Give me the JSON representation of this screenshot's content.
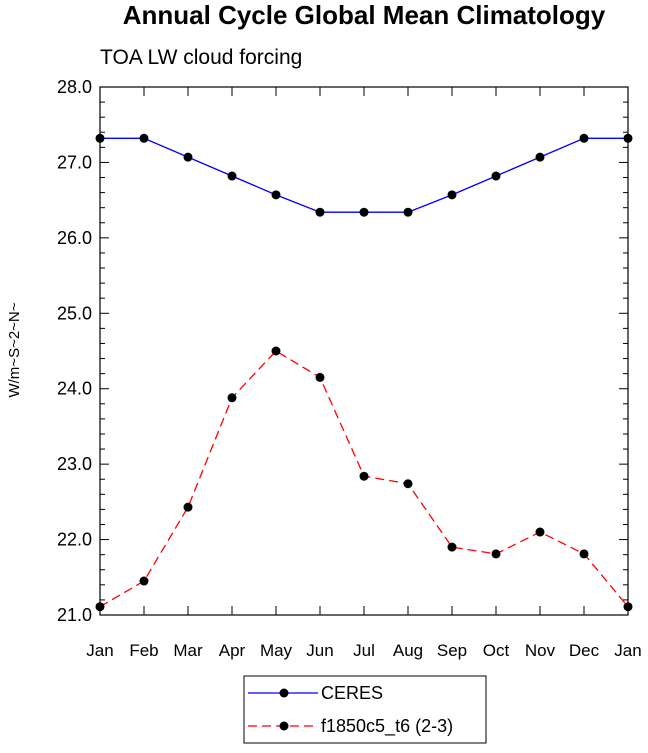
{
  "chart_data": {
    "type": "line",
    "title": "Annual Cycle Global Mean Climatology",
    "subtitle": "TOA LW cloud forcing",
    "ylabel": "W/m~S~2~N~",
    "xlabel": "",
    "ylim": [
      21.0,
      28.0
    ],
    "yticks": [
      "21.0",
      "22.0",
      "23.0",
      "24.0",
      "25.0",
      "26.0",
      "27.0",
      "28.0"
    ],
    "categories": [
      "Jan",
      "Feb",
      "Mar",
      "Apr",
      "May",
      "Jun",
      "Jul",
      "Aug",
      "Sep",
      "Oct",
      "Nov",
      "Dec",
      "Jan"
    ],
    "series": [
      {
        "name": "CERES",
        "color": "#0000ff",
        "dashed": false,
        "values": [
          27.32,
          27.32,
          27.07,
          26.82,
          26.57,
          26.34,
          26.34,
          26.34,
          26.57,
          26.82,
          27.07,
          27.32,
          27.32
        ]
      },
      {
        "name": "f1850c5_t6 (2-3)",
        "color": "#ff0000",
        "dashed": true,
        "values": [
          21.11,
          21.45,
          22.43,
          23.88,
          24.5,
          24.15,
          22.84,
          22.74,
          21.9,
          21.81,
          22.1,
          21.81,
          21.11
        ]
      }
    ],
    "legend_position": "bottom-center"
  }
}
